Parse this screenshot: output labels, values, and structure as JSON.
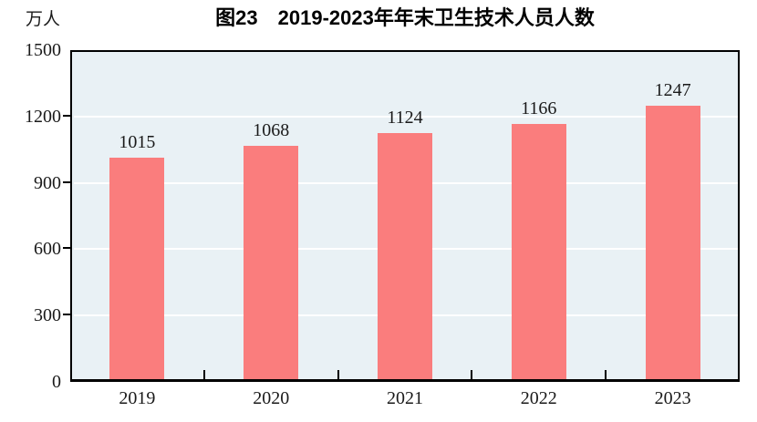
{
  "chart_data": {
    "type": "bar",
    "title": "图23　2019-2023年年末卫生技术人员人数",
    "xlabel": "",
    "ylabel": "万人",
    "categories": [
      "2019",
      "2020",
      "2021",
      "2022",
      "2023"
    ],
    "values": [
      1015,
      1068,
      1124,
      1166,
      1247
    ],
    "data_labels": [
      "1015",
      "1068",
      "1124",
      "1166",
      "1247"
    ],
    "ylim": [
      0,
      1500
    ],
    "yticks": [
      0,
      300,
      600,
      900,
      1200,
      1500
    ],
    "grid": true,
    "legend_position": "none",
    "bar_color": "#FA7D7D",
    "plot_bg_color": "#E9F1F5",
    "grid_color": "#FFFFFF",
    "axis_color": "#000000",
    "text_color": "#1A1A1A"
  }
}
